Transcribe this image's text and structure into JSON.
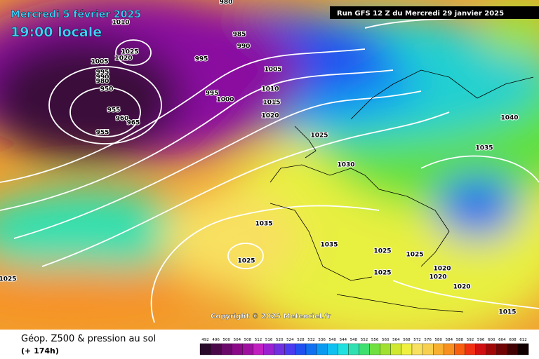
{
  "header": {
    "date": "Mercredi 5 février 2025",
    "time": "19:00 locale",
    "run": "Run GFS 12 Z du Mercredi 29 janvier 2025"
  },
  "map": {
    "copyright": "Copyright © 2025 Meteociel.fr",
    "isobar_labels": [
      980,
      1010,
      1025,
      1020,
      1005,
      995,
      990,
      980,
      950,
      955,
      960,
      965,
      955,
      985,
      990,
      995,
      995,
      1000,
      1005,
      1010,
      1015,
      1020,
      1025,
      1030,
      1035,
      1035,
      1025,
      1025,
      1025,
      1025,
      1020,
      1020,
      1020,
      1040,
      1035,
      1015,
      1025
    ]
  },
  "footer": {
    "title": "Géop. Z500 & pression au sol",
    "lead": "(+ 174h)",
    "scale": {
      "labels": [
        492,
        496,
        500,
        504,
        508,
        512,
        516,
        520,
        524,
        528,
        532,
        536,
        540,
        544,
        548,
        552,
        556,
        560,
        564,
        568,
        572,
        576,
        580,
        584,
        588,
        592,
        596,
        600,
        604,
        608,
        612
      ],
      "colors": [
        "#2a0a2a",
        "#4a0a4a",
        "#6a0a6a",
        "#8a0a8a",
        "#a010a0",
        "#c020c0",
        "#9a20d0",
        "#7030e0",
        "#4a3af0",
        "#2050f0",
        "#1070f0",
        "#0a9af0",
        "#10c0f0",
        "#20e0e0",
        "#30e0b0",
        "#40e070",
        "#70e040",
        "#a0e030",
        "#d0e830",
        "#f0f040",
        "#f8e060",
        "#f8d050",
        "#f8b030",
        "#f89020",
        "#f86010",
        "#f03010",
        "#d01010",
        "#a00808",
        "#700404",
        "#400202",
        "#100000"
      ]
    }
  }
}
